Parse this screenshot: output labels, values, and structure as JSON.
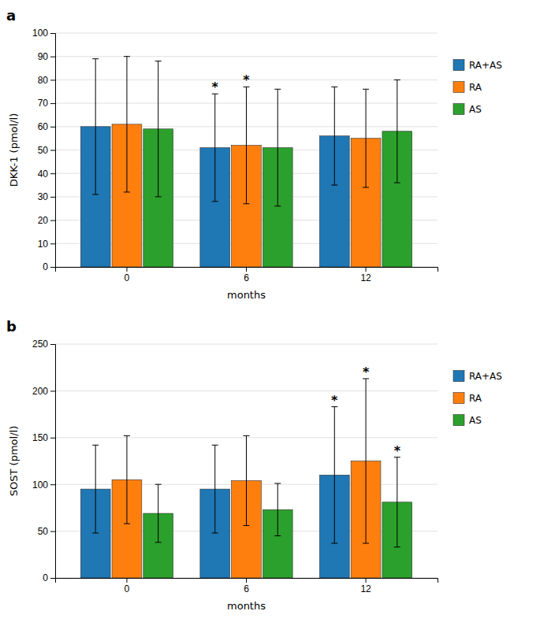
{
  "chart_data": [
    {
      "type": "bar",
      "title": "a",
      "x_label": "months",
      "y_label": "DKK-1 (pmol/l)",
      "categories": [
        0,
        6,
        12
      ],
      "series": [
        {
          "name": "RA+AS",
          "values": [
            60,
            51,
            56
          ],
          "errors": [
            29,
            23,
            21
          ]
        },
        {
          "name": "RA",
          "values": [
            61,
            52,
            55
          ],
          "errors": [
            29,
            25,
            21
          ]
        },
        {
          "name": "AS",
          "values": [
            59,
            51,
            58
          ],
          "errors": [
            29,
            25,
            22
          ]
        }
      ],
      "annotations": [
        {
          "text": "*",
          "category": 6,
          "series": "RA+AS"
        },
        {
          "text": "*",
          "category": 6,
          "series": "RA"
        }
      ],
      "ylim": [
        0,
        100
      ],
      "yticks": [
        0,
        10,
        20,
        30,
        40,
        50,
        60,
        70,
        80,
        90,
        100
      ],
      "grid": true,
      "legend": "right"
    },
    {
      "type": "bar",
      "title": "b",
      "x_label": "months",
      "y_label": "SOST (pmol/l)",
      "categories": [
        0,
        6,
        12
      ],
      "series": [
        {
          "name": "RA+AS",
          "values": [
            95,
            95,
            110
          ],
          "errors": [
            47,
            47,
            73
          ]
        },
        {
          "name": "RA",
          "values": [
            105,
            104,
            125
          ],
          "errors": [
            47,
            48,
            88
          ]
        },
        {
          "name": "AS",
          "values": [
            69,
            73,
            81
          ],
          "errors": [
            31,
            28,
            48
          ]
        }
      ],
      "annotations": [
        {
          "text": "*",
          "category": 12,
          "series": "RA+AS"
        },
        {
          "text": "*",
          "category": 12,
          "series": "RA"
        },
        {
          "text": "*",
          "category": 12,
          "series": "AS"
        }
      ],
      "ylim": [
        0,
        250
      ],
      "yticks": [
        0,
        50,
        100,
        150,
        200,
        250
      ],
      "grid": true,
      "legend": "right"
    }
  ]
}
